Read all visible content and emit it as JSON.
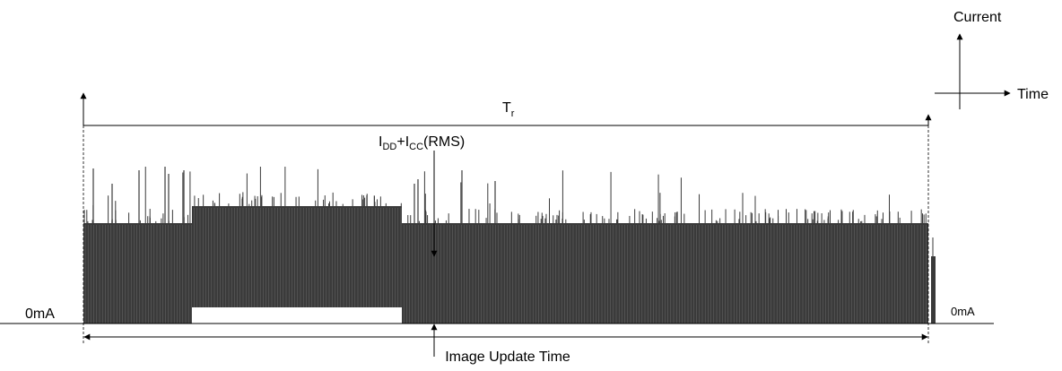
{
  "axes_key": {
    "y_label": "Current",
    "x_label": "Time"
  },
  "period": {
    "label_main": "T",
    "label_sub": "r"
  },
  "rms_label": {
    "i1": "I",
    "i1_sub": "DD",
    "plus": "+",
    "i2": "I",
    "i2_sub": "CC",
    "suffix": "(RMS)"
  },
  "baseline": {
    "left_label": "0mA",
    "right_label": "0mA"
  },
  "duration": {
    "label": "Image Update Time"
  },
  "colors": {
    "waveform": "#3a3a3a",
    "line": "#000000",
    "background": "#ffffff"
  }
}
